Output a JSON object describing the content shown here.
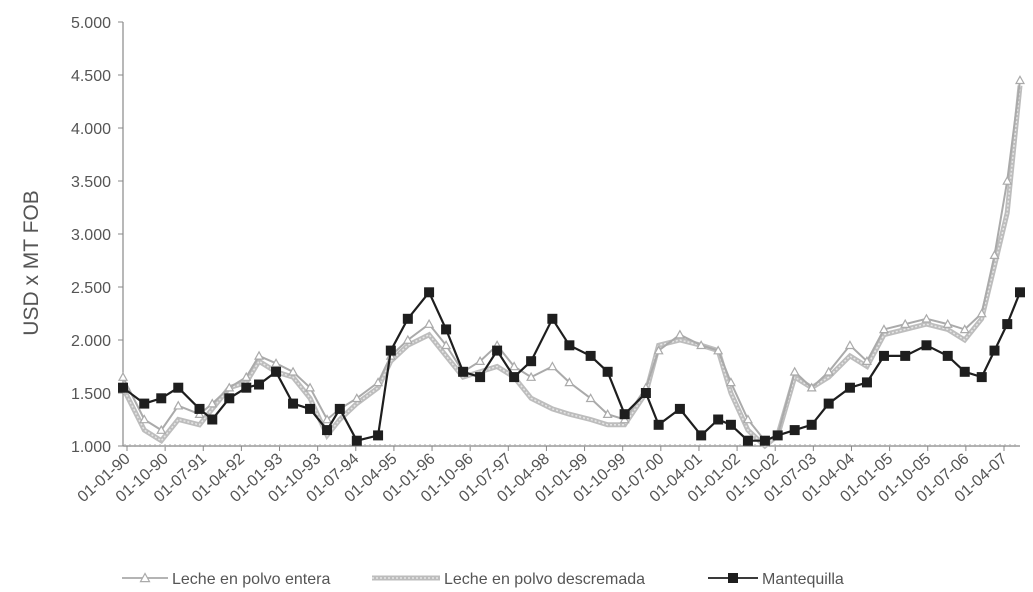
{
  "chart_data": {
    "type": "line",
    "title": "",
    "xlabel": "",
    "ylabel": "USD x MT FOB",
    "ylim": [
      1000,
      5000
    ],
    "y_ticks": [
      "1.000",
      "1.500",
      "2.000",
      "2.500",
      "3.000",
      "3.500",
      "4.000",
      "4.500",
      "5.000"
    ],
    "y_tick_values": [
      1000,
      1500,
      2000,
      2500,
      3000,
      3500,
      4000,
      4500,
      5000
    ],
    "x_range": [
      "1990-01",
      "2007-08"
    ],
    "x_ticks": [
      "01-01-90",
      "01-10-90",
      "01-07-91",
      "01-04-92",
      "01-01-93",
      "01-10-93",
      "01-07-94",
      "01-04-95",
      "01-01-96",
      "01-10-96",
      "01-07-97",
      "01-04-98",
      "01-01-99",
      "01-10-99",
      "01-07-00",
      "01-04-01",
      "01-01-02",
      "01-10-02",
      "01-07-03",
      "01-04-04",
      "01-01-05",
      "01-10-05",
      "01-07-06",
      "01-04-07"
    ],
    "grid": false,
    "legend_position": "bottom",
    "series": [
      {
        "name": "Leche en polvo entera",
        "color": "#aaaaaa",
        "marker": "triangle",
        "points": [
          [
            "1990-01",
            1650
          ],
          [
            "1990-06",
            1250
          ],
          [
            "1990-10",
            1150
          ],
          [
            "1991-02",
            1380
          ],
          [
            "1991-07",
            1300
          ],
          [
            "1991-10",
            1400
          ],
          [
            "1992-02",
            1550
          ],
          [
            "1992-06",
            1650
          ],
          [
            "1992-09",
            1850
          ],
          [
            "1993-01",
            1780
          ],
          [
            "1993-05",
            1700
          ],
          [
            "1993-09",
            1550
          ],
          [
            "1994-01",
            1250
          ],
          [
            "1994-04",
            1350
          ],
          [
            "1994-08",
            1450
          ],
          [
            "1995-01",
            1600
          ],
          [
            "1995-04",
            1850
          ],
          [
            "1995-08",
            2000
          ],
          [
            "1996-01",
            2150
          ],
          [
            "1996-05",
            1950
          ],
          [
            "1996-09",
            1700
          ],
          [
            "1997-01",
            1800
          ],
          [
            "1997-05",
            1950
          ],
          [
            "1997-09",
            1750
          ],
          [
            "1998-01",
            1650
          ],
          [
            "1998-06",
            1750
          ],
          [
            "1998-10",
            1600
          ],
          [
            "1999-03",
            1450
          ],
          [
            "1999-07",
            1300
          ],
          [
            "1999-11",
            1250
          ],
          [
            "2000-04",
            1550
          ],
          [
            "2000-07",
            1900
          ],
          [
            "2000-12",
            2050
          ],
          [
            "2001-05",
            1950
          ],
          [
            "2001-09",
            1900
          ],
          [
            "2001-12",
            1600
          ],
          [
            "2002-04",
            1250
          ],
          [
            "2002-08",
            1050
          ],
          [
            "2002-11",
            1100
          ],
          [
            "2003-03",
            1700
          ],
          [
            "2003-07",
            1550
          ],
          [
            "2003-11",
            1700
          ],
          [
            "2004-04",
            1950
          ],
          [
            "2004-08",
            1800
          ],
          [
            "2004-12",
            2100
          ],
          [
            "2005-05",
            2150
          ],
          [
            "2005-10",
            2200
          ],
          [
            "2006-03",
            2150
          ],
          [
            "2006-07",
            2100
          ],
          [
            "2006-11",
            2250
          ],
          [
            "2007-02",
            2800
          ],
          [
            "2007-05",
            3500
          ],
          [
            "2007-08",
            4450
          ]
        ]
      },
      {
        "name": "Leche en polvo descremada",
        "color": "#bdbdbd",
        "marker": "none",
        "points": [
          [
            "1990-01",
            1550
          ],
          [
            "1990-06",
            1150
          ],
          [
            "1990-10",
            1050
          ],
          [
            "1991-02",
            1250
          ],
          [
            "1991-07",
            1200
          ],
          [
            "1991-10",
            1350
          ],
          [
            "1992-02",
            1550
          ],
          [
            "1992-06",
            1600
          ],
          [
            "1992-09",
            1800
          ],
          [
            "1993-01",
            1700
          ],
          [
            "1993-05",
            1650
          ],
          [
            "1993-09",
            1450
          ],
          [
            "1994-01",
            1100
          ],
          [
            "1994-04",
            1250
          ],
          [
            "1994-08",
            1400
          ],
          [
            "1995-01",
            1550
          ],
          [
            "1995-04",
            1800
          ],
          [
            "1995-08",
            1950
          ],
          [
            "1996-01",
            2050
          ],
          [
            "1996-05",
            1850
          ],
          [
            "1996-09",
            1650
          ],
          [
            "1997-01",
            1700
          ],
          [
            "1997-05",
            1750
          ],
          [
            "1997-09",
            1650
          ],
          [
            "1998-01",
            1450
          ],
          [
            "1998-06",
            1350
          ],
          [
            "1998-10",
            1300
          ],
          [
            "1999-03",
            1250
          ],
          [
            "1999-07",
            1200
          ],
          [
            "1999-11",
            1200
          ],
          [
            "2000-04",
            1500
          ],
          [
            "2000-07",
            1950
          ],
          [
            "2000-12",
            2000
          ],
          [
            "2001-05",
            1950
          ],
          [
            "2001-09",
            1900
          ],
          [
            "2001-12",
            1500
          ],
          [
            "2002-04",
            1150
          ],
          [
            "2002-08",
            1000
          ],
          [
            "2002-11",
            1100
          ],
          [
            "2003-03",
            1650
          ],
          [
            "2003-07",
            1550
          ],
          [
            "2003-11",
            1650
          ],
          [
            "2004-04",
            1850
          ],
          [
            "2004-08",
            1750
          ],
          [
            "2004-12",
            2050
          ],
          [
            "2005-05",
            2100
          ],
          [
            "2005-10",
            2150
          ],
          [
            "2006-03",
            2100
          ],
          [
            "2006-07",
            2000
          ],
          [
            "2006-11",
            2200
          ],
          [
            "2007-02",
            2700
          ],
          [
            "2007-05",
            3200
          ],
          [
            "2007-08",
            4400
          ]
        ]
      },
      {
        "name": "Mantequilla",
        "color": "#1e1e1e",
        "marker": "square",
        "points": [
          [
            "1990-01",
            1550
          ],
          [
            "1990-06",
            1400
          ],
          [
            "1990-10",
            1450
          ],
          [
            "1991-02",
            1550
          ],
          [
            "1991-07",
            1350
          ],
          [
            "1991-10",
            1250
          ],
          [
            "1992-02",
            1450
          ],
          [
            "1992-06",
            1550
          ],
          [
            "1992-09",
            1580
          ],
          [
            "1993-01",
            1700
          ],
          [
            "1993-05",
            1400
          ],
          [
            "1993-09",
            1350
          ],
          [
            "1994-01",
            1150
          ],
          [
            "1994-04",
            1350
          ],
          [
            "1994-08",
            1050
          ],
          [
            "1995-01",
            1100
          ],
          [
            "1995-04",
            1900
          ],
          [
            "1995-08",
            2200
          ],
          [
            "1996-01",
            2450
          ],
          [
            "1996-05",
            2100
          ],
          [
            "1996-09",
            1700
          ],
          [
            "1997-01",
            1650
          ],
          [
            "1997-05",
            1900
          ],
          [
            "1997-09",
            1650
          ],
          [
            "1998-01",
            1800
          ],
          [
            "1998-06",
            2200
          ],
          [
            "1998-10",
            1950
          ],
          [
            "1999-03",
            1850
          ],
          [
            "1999-07",
            1700
          ],
          [
            "1999-11",
            1300
          ],
          [
            "2000-04",
            1500
          ],
          [
            "2000-07",
            1200
          ],
          [
            "2000-12",
            1350
          ],
          [
            "2001-05",
            1100
          ],
          [
            "2001-09",
            1250
          ],
          [
            "2001-12",
            1200
          ],
          [
            "2002-04",
            1050
          ],
          [
            "2002-08",
            1050
          ],
          [
            "2002-11",
            1100
          ],
          [
            "2003-03",
            1150
          ],
          [
            "2003-07",
            1200
          ],
          [
            "2003-11",
            1400
          ],
          [
            "2004-04",
            1550
          ],
          [
            "2004-08",
            1600
          ],
          [
            "2004-12",
            1850
          ],
          [
            "2005-05",
            1850
          ],
          [
            "2005-10",
            1950
          ],
          [
            "2006-03",
            1850
          ],
          [
            "2006-07",
            1700
          ],
          [
            "2006-11",
            1650
          ],
          [
            "2007-02",
            1900
          ],
          [
            "2007-05",
            2150
          ],
          [
            "2007-08",
            2450
          ]
        ]
      }
    ]
  }
}
